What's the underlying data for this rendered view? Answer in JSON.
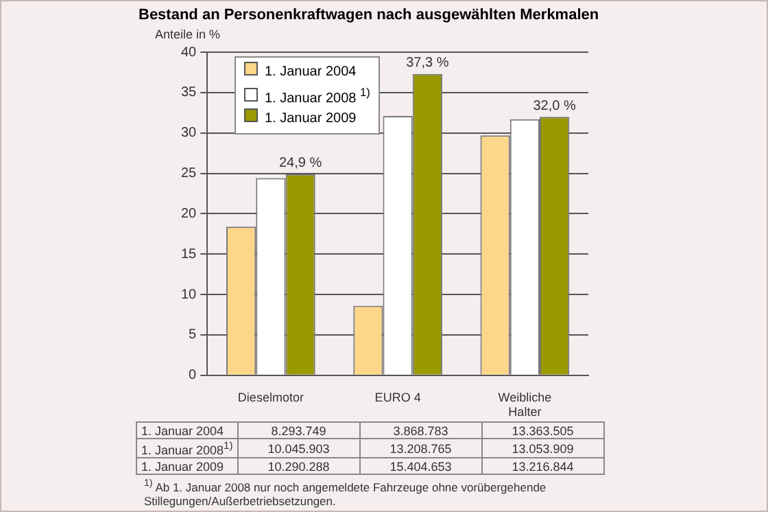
{
  "chart_data": {
    "type": "bar",
    "title": "Bestand an Personenkraftwagen nach ausgewählten Merkmalen",
    "ylabel": "Anteile in %",
    "categories": [
      "Dieselmotor",
      "EURO 4",
      "Weibliche Halter"
    ],
    "series": [
      {
        "name": "1. Januar 2004",
        "color": "#fdd68a",
        "values": [
          18.4,
          8.6,
          29.7
        ]
      },
      {
        "name": "1. Januar 2008 $^{1)}$",
        "color": "#ffffff",
        "values": [
          24.4,
          32.1,
          31.7
        ]
      },
      {
        "name": "1. Januar 2009",
        "color": "#999900",
        "values": [
          24.9,
          37.3,
          32.0
        ],
        "value_labels": [
          "24,9 %",
          "37,3 %",
          "32,0 %"
        ]
      }
    ],
    "ylim": [
      0,
      40
    ],
    "yticks": [
      0,
      5,
      10,
      15,
      20,
      25,
      30,
      35,
      40
    ],
    "grid": "y",
    "legend": "top left",
    "annotations": [
      "8.293.749",
      "3.868.783",
      "13.363.505",
      "10.045.903",
      "13.208.765",
      "13.053.909",
      "10.290.288",
      "15.404.653",
      "13.216.844",
      "$^{1)}$ Ab 1. Januar 2008 nur noch angemeldete Fahrzeuge ohne vorübergehende Stillegungen/Außerbetriebsetzungen."
    ]
  }
}
